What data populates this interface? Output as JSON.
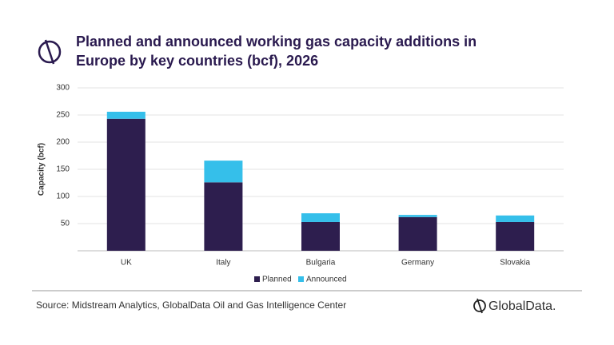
{
  "chart_data": {
    "type": "stacked_bar",
    "title": [
      "Planned and announced working gas capacity additions in",
      "Europe by key countries (bcf), 2026"
    ],
    "y_label": "Capacity (bcf)",
    "categories": [
      "UK",
      "Italy",
      "Bulgaria",
      "Germany",
      "Slovakia"
    ],
    "series": [
      {
        "name": "Planned",
        "color": "#2d1e4e",
        "values": [
          243,
          126,
          53,
          62,
          53
        ]
      },
      {
        "name": "Announced",
        "color": "#35bfea",
        "values": [
          13,
          40,
          16,
          4,
          12
        ]
      }
    ],
    "ylim": [
      0,
      300
    ],
    "yticks": [
      50,
      100,
      150,
      200,
      250,
      300
    ],
    "grid": true,
    "source": "Source: Midstream Analytics, GlobalData Oil and Gas Intelligence Center",
    "brand": "GlobalData."
  }
}
